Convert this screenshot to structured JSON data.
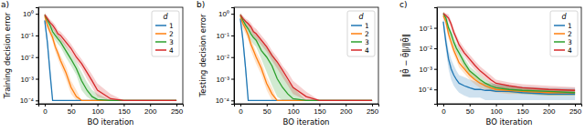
{
  "chart_data": [
    {
      "type": "line",
      "title": "a)",
      "x_label": "BO iteration",
      "y_label": "Training decision error",
      "legend_title": "d",
      "legend": "upper right",
      "log": "y",
      "xlim": [
        -12,
        262
      ],
      "xticks": [
        0,
        50,
        100,
        150,
        200,
        250
      ],
      "ylim": [
        7e-05,
        2
      ],
      "yticks": [
        {
          "value": 0.0001,
          "label": "10⁻⁴"
        },
        {
          "value": 0.001,
          "label": "10⁻³"
        },
        {
          "value": 0.01,
          "label": "10⁻²"
        },
        {
          "value": 0.1,
          "label": "10⁻¹"
        },
        {
          "value": 1,
          "label": "10⁰"
        }
      ],
      "x": [
        0,
        5,
        10,
        15,
        20,
        25,
        30,
        40,
        50,
        60,
        70,
        80,
        90,
        100,
        125,
        150,
        200,
        250
      ],
      "series": [
        {
          "name": "1",
          "color": "#1f77b4",
          "values": [
            0.5,
            0.05,
            0.002,
            0.0001,
            0.0001,
            0.0001,
            0.0001,
            0.0001,
            0.0001,
            0.0001,
            0.0001,
            0.0001,
            0.0001,
            0.0001,
            0.0001,
            0.0001,
            0.0001,
            0.0001
          ],
          "lower": [
            0.35,
            0.03,
            0.001,
            0.0001,
            0.0001,
            0.0001,
            0.0001,
            0.0001,
            0.0001,
            0.0001,
            0.0001,
            0.0001,
            0.0001,
            0.0001,
            0.0001,
            0.0001,
            0.0001,
            0.0001
          ],
          "upper": [
            0.7,
            0.08,
            0.004,
            0.0001,
            0.0001,
            0.0001,
            0.0001,
            0.0001,
            0.0001,
            0.0001,
            0.0001,
            0.0001,
            0.0001,
            0.0001,
            0.0001,
            0.0001,
            0.0001,
            0.0001
          ]
        },
        {
          "name": "2",
          "color": "#ff7f0e",
          "values": [
            0.8,
            0.3,
            0.15,
            0.08,
            0.03,
            0.015,
            0.007,
            0.002,
            0.0004,
            0.00015,
            0.0001,
            0.0001,
            0.0001,
            0.0001,
            0.0001,
            0.0001,
            0.0001,
            0.0001
          ],
          "lower": [
            0.6,
            0.2,
            0.1,
            0.05,
            0.018,
            0.008,
            0.004,
            0.001,
            0.0002,
            0.0001,
            0.0001,
            0.0001,
            0.0001,
            0.0001,
            0.0001,
            0.0001,
            0.0001,
            0.0001
          ],
          "upper": [
            1.0,
            0.45,
            0.22,
            0.12,
            0.05,
            0.025,
            0.012,
            0.004,
            0.0008,
            0.0003,
            0.0001,
            0.0001,
            0.0001,
            0.0001,
            0.0001,
            0.0001,
            0.0001,
            0.0001
          ]
        },
        {
          "name": "3",
          "color": "#2ca02c",
          "values": [
            0.9,
            0.5,
            0.3,
            0.15,
            0.1,
            0.07,
            0.05,
            0.02,
            0.008,
            0.003,
            0.0008,
            0.0003,
            0.00015,
            0.00011,
            0.0001,
            0.0001,
            0.0001,
            0.0001
          ],
          "lower": [
            0.7,
            0.35,
            0.2,
            0.1,
            0.06,
            0.04,
            0.03,
            0.01,
            0.004,
            0.0015,
            0.0003,
            0.00015,
            0.0001,
            0.0001,
            0.0001,
            0.0001,
            0.0001,
            0.0001
          ],
          "upper": [
            1.1,
            0.7,
            0.45,
            0.25,
            0.16,
            0.11,
            0.08,
            0.035,
            0.015,
            0.006,
            0.002,
            0.0007,
            0.0003,
            0.0002,
            0.0001,
            0.0001,
            0.0001,
            0.0001
          ]
        },
        {
          "name": "4",
          "color": "#d62728",
          "values": [
            0.9,
            0.6,
            0.4,
            0.3,
            0.2,
            0.12,
            0.1,
            0.05,
            0.025,
            0.01,
            0.005,
            0.002,
            0.0008,
            0.0003,
            0.00012,
            0.0001,
            0.0001,
            0.0001
          ],
          "lower": [
            0.7,
            0.45,
            0.3,
            0.2,
            0.13,
            0.08,
            0.06,
            0.03,
            0.015,
            0.006,
            0.003,
            0.001,
            0.0004,
            0.00015,
            0.0001,
            0.0001,
            0.0001,
            0.0001
          ],
          "upper": [
            1.1,
            0.8,
            0.55,
            0.42,
            0.3,
            0.18,
            0.15,
            0.08,
            0.04,
            0.017,
            0.008,
            0.0035,
            0.0015,
            0.0006,
            0.0002,
            0.0001,
            0.0001,
            0.0001
          ]
        }
      ]
    },
    {
      "type": "line",
      "title": "b)",
      "x_label": "BO iteration",
      "y_label": "Testing decision error",
      "legend_title": "d",
      "legend": "upper right",
      "log": "y",
      "xlim": [
        -12,
        262
      ],
      "xticks": [
        0,
        50,
        100,
        150,
        200,
        250
      ],
      "ylim": [
        7e-05,
        2
      ],
      "yticks": [
        {
          "value": 0.0001,
          "label": "10⁻⁴"
        },
        {
          "value": 0.001,
          "label": "10⁻³"
        },
        {
          "value": 0.01,
          "label": "10⁻²"
        },
        {
          "value": 0.1,
          "label": "10⁻¹"
        },
        {
          "value": 1,
          "label": "10⁰"
        }
      ],
      "x": [
        0,
        5,
        10,
        15,
        20,
        25,
        30,
        40,
        50,
        60,
        70,
        80,
        90,
        100,
        125,
        150,
        200,
        250
      ],
      "series": [
        {
          "name": "1",
          "color": "#1f77b4",
          "values": [
            0.6,
            0.06,
            0.003,
            0.0001,
            0.0001,
            0.0001,
            0.0001,
            0.0001,
            0.0001,
            0.0001,
            0.0001,
            0.0001,
            0.0001,
            0.0001,
            0.0001,
            0.0001,
            0.0001,
            0.0001
          ],
          "lower": [
            0.4,
            0.03,
            0.0015,
            0.0001,
            0.0001,
            0.0001,
            0.0001,
            0.0001,
            0.0001,
            0.0001,
            0.0001,
            0.0001,
            0.0001,
            0.0001,
            0.0001,
            0.0001,
            0.0001,
            0.0001
          ],
          "upper": [
            0.8,
            0.1,
            0.006,
            0.0001,
            0.0001,
            0.0001,
            0.0001,
            0.0001,
            0.0001,
            0.0001,
            0.0001,
            0.0001,
            0.0001,
            0.0001,
            0.0001,
            0.0001,
            0.0001,
            0.0001
          ]
        },
        {
          "name": "2",
          "color": "#ff7f0e",
          "values": [
            0.8,
            0.35,
            0.2,
            0.1,
            0.04,
            0.02,
            0.01,
            0.003,
            0.0006,
            0.0002,
            0.0001,
            0.0001,
            0.0001,
            0.0001,
            0.0001,
            0.0001,
            0.0001,
            0.0001
          ],
          "lower": [
            0.6,
            0.2,
            0.12,
            0.06,
            0.02,
            0.01,
            0.005,
            0.0015,
            0.0003,
            0.0001,
            0.0001,
            0.0001,
            0.0001,
            0.0001,
            0.0001,
            0.0001,
            0.0001,
            0.0001
          ],
          "upper": [
            1.0,
            0.5,
            0.3,
            0.15,
            0.07,
            0.035,
            0.018,
            0.006,
            0.0012,
            0.0004,
            0.0001,
            0.0001,
            0.0001,
            0.0001,
            0.0001,
            0.0001,
            0.0001,
            0.0001
          ]
        },
        {
          "name": "3",
          "color": "#2ca02c",
          "values": [
            0.9,
            0.5,
            0.3,
            0.2,
            0.12,
            0.08,
            0.06,
            0.02,
            0.01,
            0.004,
            0.001,
            0.0004,
            0.0002,
            0.00012,
            0.0001,
            0.0001,
            0.0001,
            0.0001
          ],
          "lower": [
            0.7,
            0.3,
            0.18,
            0.1,
            0.06,
            0.04,
            0.03,
            0.008,
            0.002,
            0.0005,
            0.00015,
            0.0001,
            0.0001,
            0.0001,
            0.0001,
            0.0001,
            0.0001,
            0.0001
          ],
          "upper": [
            1.1,
            0.75,
            0.5,
            0.35,
            0.22,
            0.15,
            0.11,
            0.05,
            0.03,
            0.015,
            0.006,
            0.002,
            0.0008,
            0.0004,
            0.0001,
            0.0001,
            0.0001,
            0.0001
          ]
        },
        {
          "name": "4",
          "color": "#d62728",
          "values": [
            0.9,
            0.6,
            0.45,
            0.35,
            0.25,
            0.15,
            0.12,
            0.06,
            0.03,
            0.012,
            0.006,
            0.0025,
            0.001,
            0.0004,
            0.00015,
            0.0001,
            0.0001,
            0.0001
          ],
          "lower": [
            0.7,
            0.45,
            0.3,
            0.22,
            0.15,
            0.09,
            0.07,
            0.035,
            0.018,
            0.007,
            0.003,
            0.0012,
            0.0005,
            0.0002,
            0.0001,
            0.0001,
            0.0001,
            0.0001
          ],
          "upper": [
            1.1,
            0.8,
            0.6,
            0.5,
            0.38,
            0.25,
            0.2,
            0.1,
            0.05,
            0.02,
            0.01,
            0.004,
            0.002,
            0.0008,
            0.00025,
            0.0001,
            0.0001,
            0.0001
          ]
        }
      ]
    },
    {
      "type": "line",
      "title": "c)",
      "x_label": "BO iteration",
      "y_label": "‖θ̂ − θ̄‖/‖θ̄‖",
      "legend_title": "d",
      "legend": "upper right",
      "log": "y",
      "xlim": [
        -12,
        262
      ],
      "xticks": [
        0,
        50,
        100,
        150,
        200,
        250
      ],
      "ylim": [
        2e-05,
        1
      ],
      "yticks": [
        {
          "value": 0.0001,
          "label": "10⁻⁴"
        },
        {
          "value": 0.001,
          "label": "10⁻³"
        },
        {
          "value": 0.01,
          "label": "10⁻²"
        },
        {
          "value": 0.1,
          "label": "10⁻¹"
        }
      ],
      "x": [
        0,
        5,
        10,
        15,
        20,
        25,
        30,
        40,
        50,
        60,
        70,
        80,
        90,
        100,
        125,
        150,
        200,
        250
      ],
      "series": [
        {
          "name": "1",
          "color": "#1f77b4",
          "values": [
            0.2,
            0.02,
            0.003,
            0.001,
            0.0005,
            0.0003,
            0.0002,
            0.00015,
            0.00012,
            0.0001,
            0.0001,
            9e-05,
            9e-05,
            8e-05,
            8e-05,
            7e-05,
            6e-05,
            6e-05
          ],
          "lower": [
            0.1,
            0.008,
            0.001,
            0.0003,
            0.00015,
            0.0001,
            7e-05,
            5e-05,
            4e-05,
            4e-05,
            4e-05,
            3e-05,
            3e-05,
            3e-05,
            3e-05,
            3e-05,
            3e-05,
            3e-05
          ],
          "upper": [
            0.35,
            0.05,
            0.008,
            0.003,
            0.0015,
            0.0008,
            0.0005,
            0.0004,
            0.0003,
            0.00025,
            0.00022,
            0.0002,
            0.0002,
            0.00018,
            0.00016,
            0.00014,
            0.00012,
            0.00012
          ]
        },
        {
          "name": "2",
          "color": "#ff7f0e",
          "values": [
            0.4,
            0.2,
            0.05,
            0.02,
            0.008,
            0.004,
            0.002,
            0.001,
            0.0005,
            0.0003,
            0.0002,
            0.00015,
            0.00012,
            0.0001,
            9e-05,
            8e-05,
            7e-05,
            7e-05
          ],
          "lower": [
            0.3,
            0.12,
            0.03,
            0.012,
            0.005,
            0.0025,
            0.0012,
            0.0006,
            0.0003,
            0.00018,
            0.00012,
            0.0001,
            8e-05,
            7e-05,
            6e-05,
            6e-05,
            5e-05,
            5e-05
          ],
          "upper": [
            0.55,
            0.3,
            0.08,
            0.035,
            0.014,
            0.007,
            0.0035,
            0.0017,
            0.0008,
            0.0005,
            0.0003,
            0.00022,
            0.00018,
            0.00015,
            0.00013,
            0.00011,
            0.0001,
            0.0001
          ]
        },
        {
          "name": "3",
          "color": "#2ca02c",
          "values": [
            0.5,
            0.3,
            0.1,
            0.05,
            0.02,
            0.01,
            0.006,
            0.002,
            0.0008,
            0.0005,
            0.0003,
            0.0002,
            0.00015,
            0.00012,
            0.0001,
            9e-05,
            8e-05,
            7e-05
          ],
          "lower": [
            0.4,
            0.2,
            0.06,
            0.03,
            0.012,
            0.006,
            0.0035,
            0.0012,
            0.0005,
            0.0003,
            0.0002,
            0.00013,
            0.0001,
            8e-05,
            7e-05,
            6e-05,
            5e-05,
            5e-05
          ],
          "upper": [
            0.6,
            0.45,
            0.16,
            0.08,
            0.035,
            0.017,
            0.01,
            0.0035,
            0.0013,
            0.0008,
            0.0005,
            0.0003,
            0.00022,
            0.00018,
            0.00015,
            0.00013,
            0.00011,
            0.0001
          ]
        },
        {
          "name": "4",
          "color": "#d62728",
          "values": [
            0.5,
            0.4,
            0.3,
            0.15,
            0.06,
            0.03,
            0.015,
            0.006,
            0.003,
            0.0015,
            0.0008,
            0.0005,
            0.0003,
            0.0002,
            0.00015,
            0.00012,
            0.0001,
            9e-05
          ],
          "lower": [
            0.4,
            0.3,
            0.2,
            0.1,
            0.04,
            0.02,
            0.009,
            0.004,
            0.0018,
            0.0009,
            0.0005,
            0.0003,
            0.0002,
            0.00013,
            0.0001,
            8e-05,
            7e-05,
            6e-05
          ],
          "upper": [
            0.6,
            0.5,
            0.45,
            0.22,
            0.09,
            0.045,
            0.024,
            0.01,
            0.005,
            0.0025,
            0.0013,
            0.0008,
            0.0005,
            0.0003,
            0.00022,
            0.00018,
            0.00015,
            0.00013
          ]
        }
      ]
    }
  ]
}
